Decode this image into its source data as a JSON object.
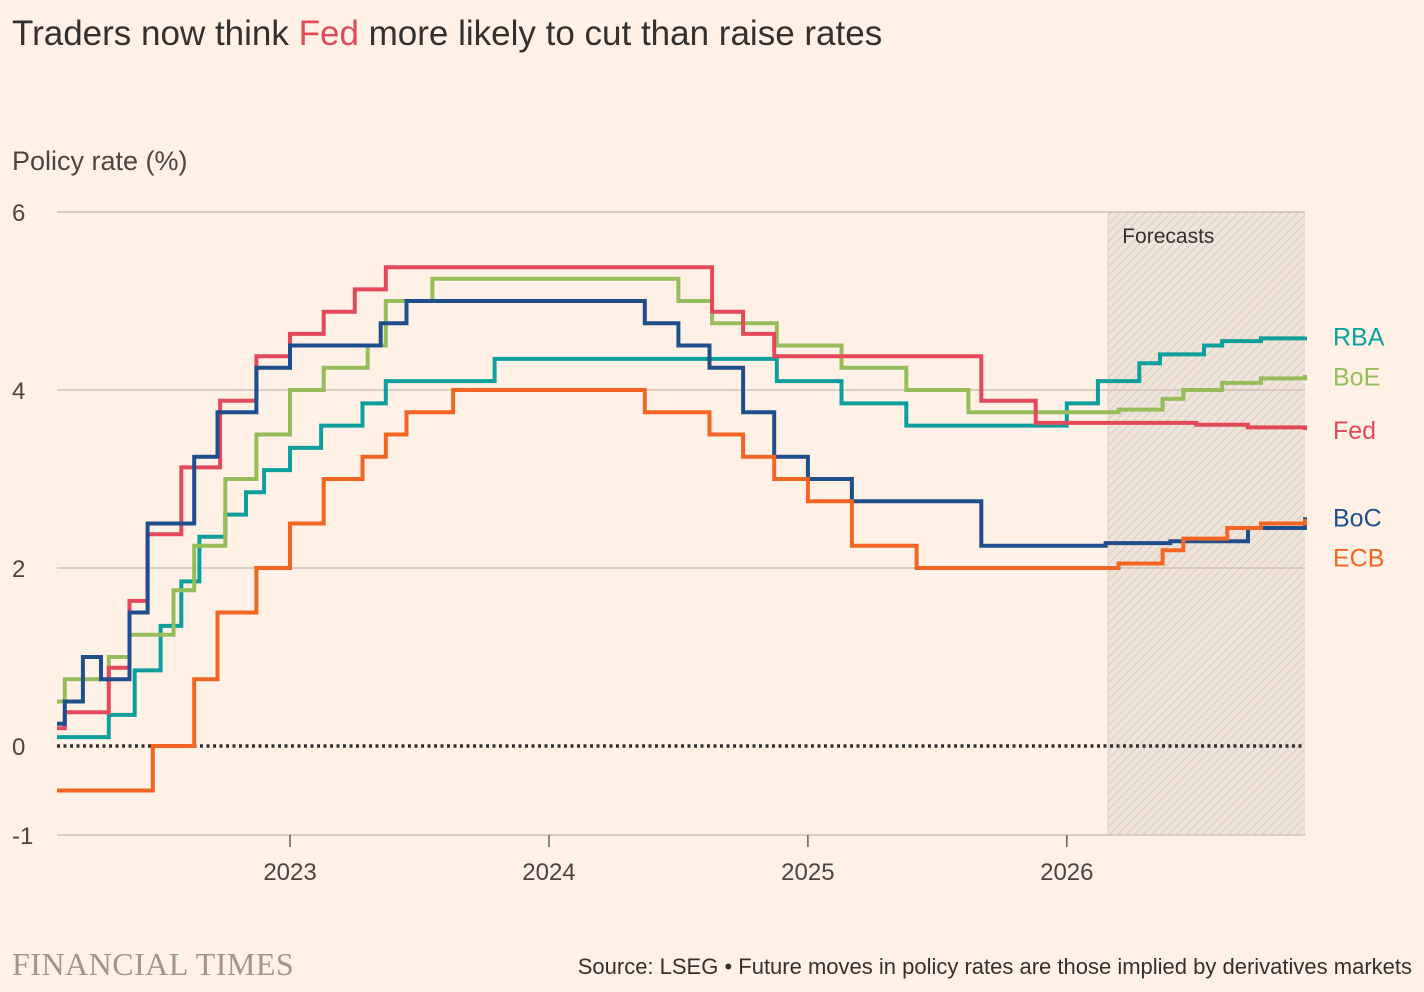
{
  "title": {
    "before": "Traders now think ",
    "highlight": "Fed",
    "after": " more likely to cut than raise rates"
  },
  "footer": {
    "brand": "FINANCIAL TIMES",
    "source": "Source: LSEG • Future moves in policy rates are those implied by derivatives markets"
  },
  "chart_data": {
    "type": "line",
    "step": true,
    "title": "",
    "ylabel": "Policy rate (%)",
    "xlim": [
      2022.1,
      2026.92
    ],
    "ylim": [
      -1,
      6
    ],
    "yticks": [
      6,
      4,
      2,
      0,
      -1
    ],
    "ytick_labels": [
      "6",
      "4",
      "2",
      "0",
      "-1"
    ],
    "xticks": [
      2023,
      2024,
      2025,
      2026
    ],
    "xtick_labels": [
      "2023",
      "2024",
      "2025",
      "2026"
    ],
    "grid": "horizontal",
    "zero_line": "dotted",
    "forecast_region": {
      "start": 2026.16,
      "end": 2026.92,
      "label": "Forecasts"
    },
    "series": [
      {
        "name": "RBA",
        "color": "#0D9E9E",
        "points": [
          [
            2022.1,
            0.1
          ],
          [
            2022.3,
            0.35
          ],
          [
            2022.4,
            0.85
          ],
          [
            2022.5,
            1.35
          ],
          [
            2022.58,
            1.85
          ],
          [
            2022.65,
            2.35
          ],
          [
            2022.75,
            2.6
          ],
          [
            2022.83,
            2.85
          ],
          [
            2022.9,
            3.1
          ],
          [
            2023.0,
            3.35
          ],
          [
            2023.12,
            3.6
          ],
          [
            2023.28,
            3.85
          ],
          [
            2023.37,
            4.1
          ],
          [
            2023.79,
            4.35
          ],
          [
            2024.88,
            4.1
          ],
          [
            2025.13,
            3.85
          ],
          [
            2025.38,
            3.6
          ],
          [
            2026.0,
            3.85
          ],
          [
            2026.12,
            4.1
          ],
          [
            2026.28,
            4.3
          ],
          [
            2026.36,
            4.4
          ],
          [
            2026.53,
            4.5
          ],
          [
            2026.6,
            4.55
          ],
          [
            2026.75,
            4.58
          ],
          [
            2026.92,
            4.6
          ]
        ]
      },
      {
        "name": "BoE",
        "color": "#96BC5C",
        "points": [
          [
            2022.1,
            0.5
          ],
          [
            2022.13,
            0.75
          ],
          [
            2022.3,
            1.0
          ],
          [
            2022.38,
            1.25
          ],
          [
            2022.55,
            1.75
          ],
          [
            2022.63,
            2.25
          ],
          [
            2022.75,
            3.0
          ],
          [
            2022.87,
            3.5
          ],
          [
            2023.0,
            4.0
          ],
          [
            2023.13,
            4.25
          ],
          [
            2023.3,
            4.5
          ],
          [
            2023.37,
            5.0
          ],
          [
            2023.55,
            5.25
          ],
          [
            2024.5,
            5.0
          ],
          [
            2024.63,
            4.75
          ],
          [
            2024.88,
            4.5
          ],
          [
            2025.13,
            4.25
          ],
          [
            2025.38,
            4.0
          ],
          [
            2025.62,
            3.75
          ],
          [
            2026.2,
            3.78
          ],
          [
            2026.37,
            3.9
          ],
          [
            2026.45,
            4.0
          ],
          [
            2026.6,
            4.08
          ],
          [
            2026.75,
            4.13
          ],
          [
            2026.92,
            4.17
          ]
        ]
      },
      {
        "name": "Fed",
        "color": "#E4495A",
        "points": [
          [
            2022.1,
            0.2
          ],
          [
            2022.13,
            0.38
          ],
          [
            2022.3,
            0.88
          ],
          [
            2022.38,
            1.63
          ],
          [
            2022.45,
            2.38
          ],
          [
            2022.58,
            3.13
          ],
          [
            2022.73,
            3.88
          ],
          [
            2022.87,
            4.38
          ],
          [
            2023.0,
            4.63
          ],
          [
            2023.13,
            4.88
          ],
          [
            2023.25,
            5.13
          ],
          [
            2023.37,
            5.38
          ],
          [
            2024.63,
            4.88
          ],
          [
            2024.75,
            4.63
          ],
          [
            2024.87,
            4.38
          ],
          [
            2025.67,
            3.88
          ],
          [
            2025.88,
            3.63
          ],
          [
            2026.15,
            3.63
          ],
          [
            2026.5,
            3.61
          ],
          [
            2026.7,
            3.58
          ],
          [
            2026.92,
            3.55
          ]
        ]
      },
      {
        "name": "BoC",
        "color": "#1F4E8C",
        "points": [
          [
            2022.1,
            0.25
          ],
          [
            2022.13,
            0.5
          ],
          [
            2022.2,
            1.0
          ],
          [
            2022.27,
            0.75
          ],
          [
            2022.38,
            1.5
          ],
          [
            2022.45,
            2.5
          ],
          [
            2022.63,
            3.25
          ],
          [
            2022.72,
            3.75
          ],
          [
            2022.87,
            4.25
          ],
          [
            2023.0,
            4.5
          ],
          [
            2023.35,
            4.75
          ],
          [
            2023.45,
            5.0
          ],
          [
            2024.37,
            4.75
          ],
          [
            2024.5,
            4.5
          ],
          [
            2024.62,
            4.25
          ],
          [
            2024.75,
            3.75
          ],
          [
            2024.87,
            3.25
          ],
          [
            2025.0,
            3.0
          ],
          [
            2025.17,
            2.75
          ],
          [
            2025.67,
            2.25
          ],
          [
            2026.15,
            2.28
          ],
          [
            2026.4,
            2.3
          ],
          [
            2026.7,
            2.45
          ],
          [
            2026.92,
            2.57
          ]
        ]
      },
      {
        "name": "ECB",
        "color": "#F26522",
        "points": [
          [
            2022.1,
            -0.5
          ],
          [
            2022.47,
            0.0
          ],
          [
            2022.63,
            0.75
          ],
          [
            2022.72,
            1.5
          ],
          [
            2022.87,
            2.0
          ],
          [
            2023.0,
            2.5
          ],
          [
            2023.13,
            3.0
          ],
          [
            2023.28,
            3.25
          ],
          [
            2023.37,
            3.5
          ],
          [
            2023.45,
            3.75
          ],
          [
            2023.63,
            4.0
          ],
          [
            2024.37,
            3.75
          ],
          [
            2024.62,
            3.5
          ],
          [
            2024.75,
            3.25
          ],
          [
            2024.87,
            3.0
          ],
          [
            2025.0,
            2.75
          ],
          [
            2025.17,
            2.25
          ],
          [
            2025.42,
            2.0
          ],
          [
            2026.2,
            2.05
          ],
          [
            2026.37,
            2.2
          ],
          [
            2026.45,
            2.33
          ],
          [
            2026.62,
            2.45
          ],
          [
            2026.75,
            2.5
          ],
          [
            2026.92,
            2.55
          ]
        ]
      }
    ]
  }
}
